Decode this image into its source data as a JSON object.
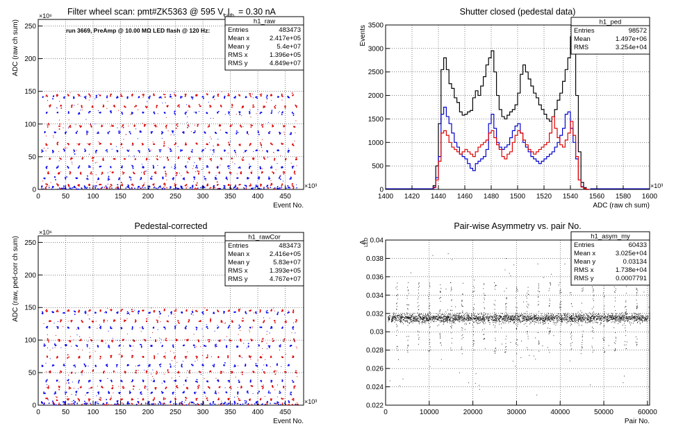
{
  "canvas": {
    "background": "#ffffff"
  },
  "chart_data": [
    {
      "id": "p1",
      "type": "scatter",
      "title": "Filter wheel scan: pmt#ZK5363 @   595 V, I",
      "title_sub": "cath",
      "title_tail": " = 0.30 nA",
      "annotation": "run 3669, PreAmp @ 10.00 MΩ LED flash @  120 Hz:",
      "xlabel": "Event No.",
      "ylabel": "ADC (raw ch sum)",
      "x_exponent": "×10³",
      "y_exponent": "×10⁶",
      "xlim": [
        0,
        483.5
      ],
      "ylim": [
        0,
        260
      ],
      "xticks": [
        0,
        50,
        100,
        150,
        200,
        250,
        300,
        350,
        400,
        450
      ],
      "yticks": [
        0,
        50,
        100,
        150,
        200,
        250
      ],
      "grid": true,
      "point_colors": {
        "blue": "#0000ee",
        "red": "#dd0000",
        "black": "#000000"
      },
      "stats": {
        "name": "h1_raw",
        "rows": [
          [
            "Entries",
            "483473"
          ],
          [
            "Mean x",
            "2.417e+05"
          ],
          [
            "Mean y",
            "5.4e+07"
          ],
          [
            "RMS x",
            "1.396e+05"
          ],
          [
            "RMS y",
            "4.849e+07"
          ]
        ]
      },
      "bands_blue": [
        5,
        18,
        35,
        60,
        88,
        118,
        142
      ],
      "bands_red": [
        8,
        26,
        48,
        70,
        98,
        128,
        145
      ]
    },
    {
      "id": "p2",
      "type": "line",
      "title": "Shutter closed (pedestal data)",
      "xlabel": "ADC (raw ch sum)",
      "ylabel": "Events",
      "x_exponent": "×10³",
      "xlim": [
        1400,
        1600
      ],
      "ylim": [
        0,
        3500
      ],
      "xticks": [
        1400,
        1420,
        1440,
        1460,
        1480,
        1500,
        1520,
        1540,
        1560,
        1580,
        1600
      ],
      "yticks": [
        0,
        500,
        1000,
        1500,
        2000,
        2500,
        3000,
        3500
      ],
      "grid": true,
      "stats": {
        "name": "h1_ped",
        "rows": [
          [
            "Entries",
            "98572"
          ],
          [
            "Mean",
            "1.497e+06"
          ],
          [
            "RMS",
            "3.254e+04"
          ]
        ]
      },
      "series": [
        {
          "color": "#000000",
          "x": [
            1437,
            1439,
            1441,
            1443,
            1445,
            1447,
            1449,
            1451,
            1453,
            1455,
            1457,
            1459,
            1461,
            1463,
            1465,
            1467,
            1469,
            1471,
            1473,
            1475,
            1477,
            1479,
            1481,
            1483,
            1485,
            1487,
            1489,
            1491,
            1493,
            1495,
            1497,
            1499,
            1501,
            1503,
            1505,
            1507,
            1509,
            1511,
            1513,
            1515,
            1517,
            1519,
            1521,
            1523,
            1525,
            1527,
            1529,
            1531,
            1533,
            1535,
            1537,
            1539,
            1541,
            1543,
            1545,
            1547,
            1549,
            1551,
            1553
          ],
          "values": [
            80,
            500,
            1400,
            2550,
            2800,
            2550,
            2250,
            2150,
            1950,
            1850,
            1650,
            1580,
            1600,
            1650,
            1680,
            1950,
            2100,
            2000,
            2200,
            2400,
            2650,
            2800,
            2950,
            2500,
            2000,
            1700,
            1550,
            1500,
            1580,
            1650,
            1700,
            1800,
            2050,
            2450,
            2650,
            2500,
            2350,
            2200,
            2050,
            1950,
            1800,
            1700,
            1600,
            1500,
            1450,
            1550,
            1700,
            1900,
            2050,
            2300,
            2550,
            2800,
            3250,
            2950,
            2000,
            800,
            150,
            40,
            0
          ]
        },
        {
          "color": "#0000cc",
          "x": [
            1437,
            1439,
            1441,
            1443,
            1445,
            1447,
            1449,
            1451,
            1453,
            1455,
            1457,
            1459,
            1461,
            1463,
            1465,
            1467,
            1469,
            1471,
            1473,
            1475,
            1477,
            1479,
            1481,
            1483,
            1485,
            1487,
            1489,
            1491,
            1493,
            1495,
            1497,
            1499,
            1501,
            1503,
            1505,
            1507,
            1509,
            1511,
            1513,
            1515,
            1517,
            1519,
            1521,
            1523,
            1525,
            1527,
            1529,
            1531,
            1533,
            1535,
            1537,
            1539,
            1541,
            1543,
            1545,
            1547,
            1549,
            1551,
            1553
          ],
          "values": [
            50,
            250,
            700,
            1600,
            1750,
            1550,
            1400,
            1200,
            1000,
            900,
            750,
            700,
            650,
            550,
            450,
            400,
            550,
            600,
            650,
            700,
            850,
            1400,
            1600,
            1300,
            1000,
            900,
            850,
            900,
            950,
            1100,
            1250,
            1350,
            1400,
            1200,
            1000,
            900,
            800,
            700,
            650,
            600,
            550,
            600,
            650,
            700,
            750,
            800,
            900,
            1000,
            1150,
            1300,
            1600,
            1650,
            1300,
            1000,
            650,
            200,
            60,
            20,
            0
          ]
        },
        {
          "color": "#dd0000",
          "x": [
            1437,
            1439,
            1441,
            1443,
            1445,
            1447,
            1449,
            1451,
            1453,
            1455,
            1457,
            1459,
            1461,
            1463,
            1465,
            1467,
            1469,
            1471,
            1473,
            1475,
            1477,
            1479,
            1481,
            1483,
            1485,
            1487,
            1489,
            1491,
            1493,
            1495,
            1497,
            1499,
            1501,
            1503,
            1505,
            1507,
            1509,
            1511,
            1513,
            1515,
            1517,
            1519,
            1521,
            1523,
            1525,
            1527,
            1529,
            1531,
            1533,
            1535,
            1537,
            1539,
            1541,
            1543,
            1545,
            1547,
            1549,
            1551,
            1553
          ],
          "values": [
            40,
            200,
            600,
            1200,
            1250,
            1150,
            1000,
            900,
            850,
            800,
            750,
            800,
            850,
            800,
            750,
            700,
            800,
            900,
            950,
            1000,
            1050,
            1200,
            1250,
            1100,
            950,
            850,
            700,
            650,
            750,
            800,
            1000,
            1150,
            1250,
            1200,
            1050,
            950,
            850,
            800,
            750,
            800,
            850,
            900,
            950,
            1000,
            1200,
            1550,
            1300,
            1100,
            950,
            900,
            1050,
            1200,
            1450,
            1150,
            700,
            200,
            50,
            20,
            0
          ]
        }
      ]
    },
    {
      "id": "p3",
      "type": "scatter",
      "title": "Pedestal-corrected",
      "xlabel": "Event No.",
      "ylabel": "ADC (raw, ped-corr ch sum)",
      "x_exponent": "×10³",
      "y_exponent": "×10⁶",
      "xlim": [
        0,
        483.5
      ],
      "ylim": [
        0,
        260
      ],
      "xticks": [
        0,
        50,
        100,
        150,
        200,
        250,
        300,
        350,
        400,
        450
      ],
      "yticks": [
        0,
        50,
        100,
        150,
        200,
        250
      ],
      "grid": true,
      "stats": {
        "name": "h1_rawCor",
        "rows": [
          [
            "Entries",
            "483473"
          ],
          [
            "Mean x",
            "2.416e+05"
          ],
          [
            "Mean y",
            "5.83e+07"
          ],
          [
            "RMS x",
            "1.393e+05"
          ],
          [
            "RMS y",
            "4.767e+07"
          ]
        ]
      },
      "bands_blue": [
        5,
        20,
        38,
        62,
        92,
        120,
        143
      ],
      "bands_red": [
        10,
        28,
        52,
        75,
        100,
        130,
        146
      ]
    },
    {
      "id": "p4",
      "type": "scatter",
      "title": "Pair-wise Asymmetry vs. pair No.",
      "xlabel": "Pair No.",
      "ylabel": "A",
      "ylabel_sub": "LED",
      "xlim": [
        0,
        60500
      ],
      "ylim": [
        0.022,
        0.04
      ],
      "xticks": [
        0,
        10000,
        20000,
        30000,
        40000,
        50000,
        60000
      ],
      "yticks": [
        0.022,
        0.024,
        0.026,
        0.028,
        0.03,
        0.032,
        0.034,
        0.036,
        0.038,
        0.04
      ],
      "grid": true,
      "stats": {
        "name": "h1_asym_my",
        "rows": [
          [
            "Entries",
            "60433"
          ],
          [
            "Mean x",
            "3.025e+04"
          ],
          [
            "Mean y",
            "0.03134"
          ],
          [
            "RMS x",
            "1.738e+04"
          ],
          [
            "RMS y",
            "0.0007791"
          ]
        ]
      },
      "band_center": 0.0315,
      "band_halfwidth": 0.0004,
      "spike_positions": [
        2500,
        5000,
        7500,
        10000,
        12500,
        15000,
        17500,
        20000,
        22500,
        25000,
        27500,
        30000,
        32500,
        35000,
        37500,
        40000,
        42500,
        45000,
        47500,
        50000,
        52500,
        55000,
        57500
      ]
    }
  ]
}
